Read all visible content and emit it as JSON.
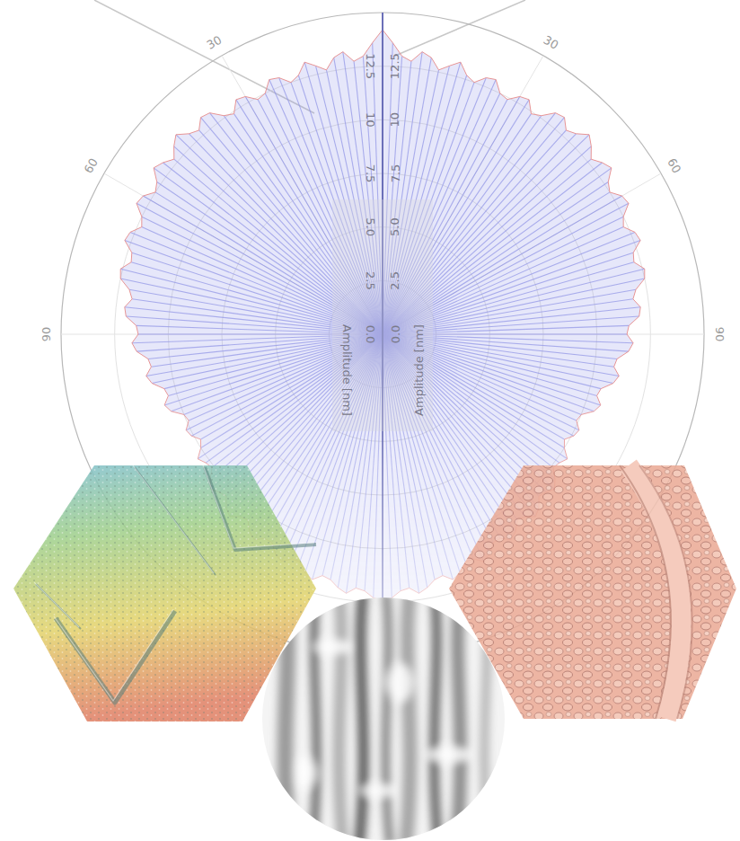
{
  "chart_data": {
    "type": "polar",
    "ylabel": "Amplitude [nm]",
    "color": "#8f93e6",
    "ylim": [
      0,
      15
    ],
    "yticks": [
      {
        "value": 0,
        "label": "0.0"
      },
      2.5,
      {
        "value": 5,
        "label": "5.0"
      },
      7.5,
      10,
      12.5
    ],
    "xlim": [
      0,
      180
    ],
    "xticks": [
      30,
      60,
      90
    ],
    "grid": true,
    "x": [
      0,
      2,
      4,
      6,
      8,
      10,
      12,
      14,
      16,
      18,
      20,
      22,
      24,
      26,
      28,
      30,
      32,
      34,
      36,
      38,
      40,
      42,
      44,
      46,
      48,
      50,
      52,
      54,
      56,
      58,
      60,
      62,
      64,
      66,
      68,
      70,
      72,
      74,
      76,
      78,
      80,
      82,
      84,
      86,
      88,
      90,
      92,
      94,
      96,
      98,
      100,
      102,
      104,
      106,
      108,
      110,
      112,
      114,
      116,
      118,
      120,
      122,
      124,
      126,
      128,
      130,
      132,
      134,
      136,
      138,
      140,
      142,
      144,
      146,
      148,
      150,
      152,
      154,
      156,
      158,
      160,
      162,
      164,
      166,
      168,
      170,
      172,
      174,
      176,
      178,
      180
    ],
    "values": [
      14.2,
      13.6,
      13.0,
      12.8,
      13.3,
      13.1,
      12.6,
      12.9,
      13.2,
      12.7,
      12.5,
      12.9,
      13.0,
      12.5,
      12.4,
      12.8,
      12.9,
      12.4,
      12.6,
      13.1,
      13.2,
      12.8,
      13.0,
      13.4,
      13.1,
      12.7,
      13.0,
      13.2,
      12.7,
      12.5,
      12.9,
      13.0,
      12.5,
      12.3,
      12.7,
      12.8,
      12.3,
      12.2,
      12.6,
      12.5,
      12.0,
      11.8,
      12.1,
      12.0,
      11.5,
      11.4,
      11.7,
      11.5,
      11.0,
      10.9,
      11.2,
      11.0,
      10.5,
      10.4,
      10.7,
      10.5,
      10.0,
      9.9,
      10.2,
      10.1,
      9.8,
      10.0,
      10.4,
      10.2,
      10.1,
      10.5,
      10.8,
      10.6,
      10.5,
      10.9,
      11.1,
      10.8,
      10.7,
      11.1,
      11.3,
      11.0,
      11.0,
      11.4,
      11.6,
      11.3,
      11.3,
      11.7,
      11.9,
      11.6,
      11.7,
      12.0,
      12.2,
      11.9,
      12.0,
      12.3,
      12.4
    ]
  }
}
